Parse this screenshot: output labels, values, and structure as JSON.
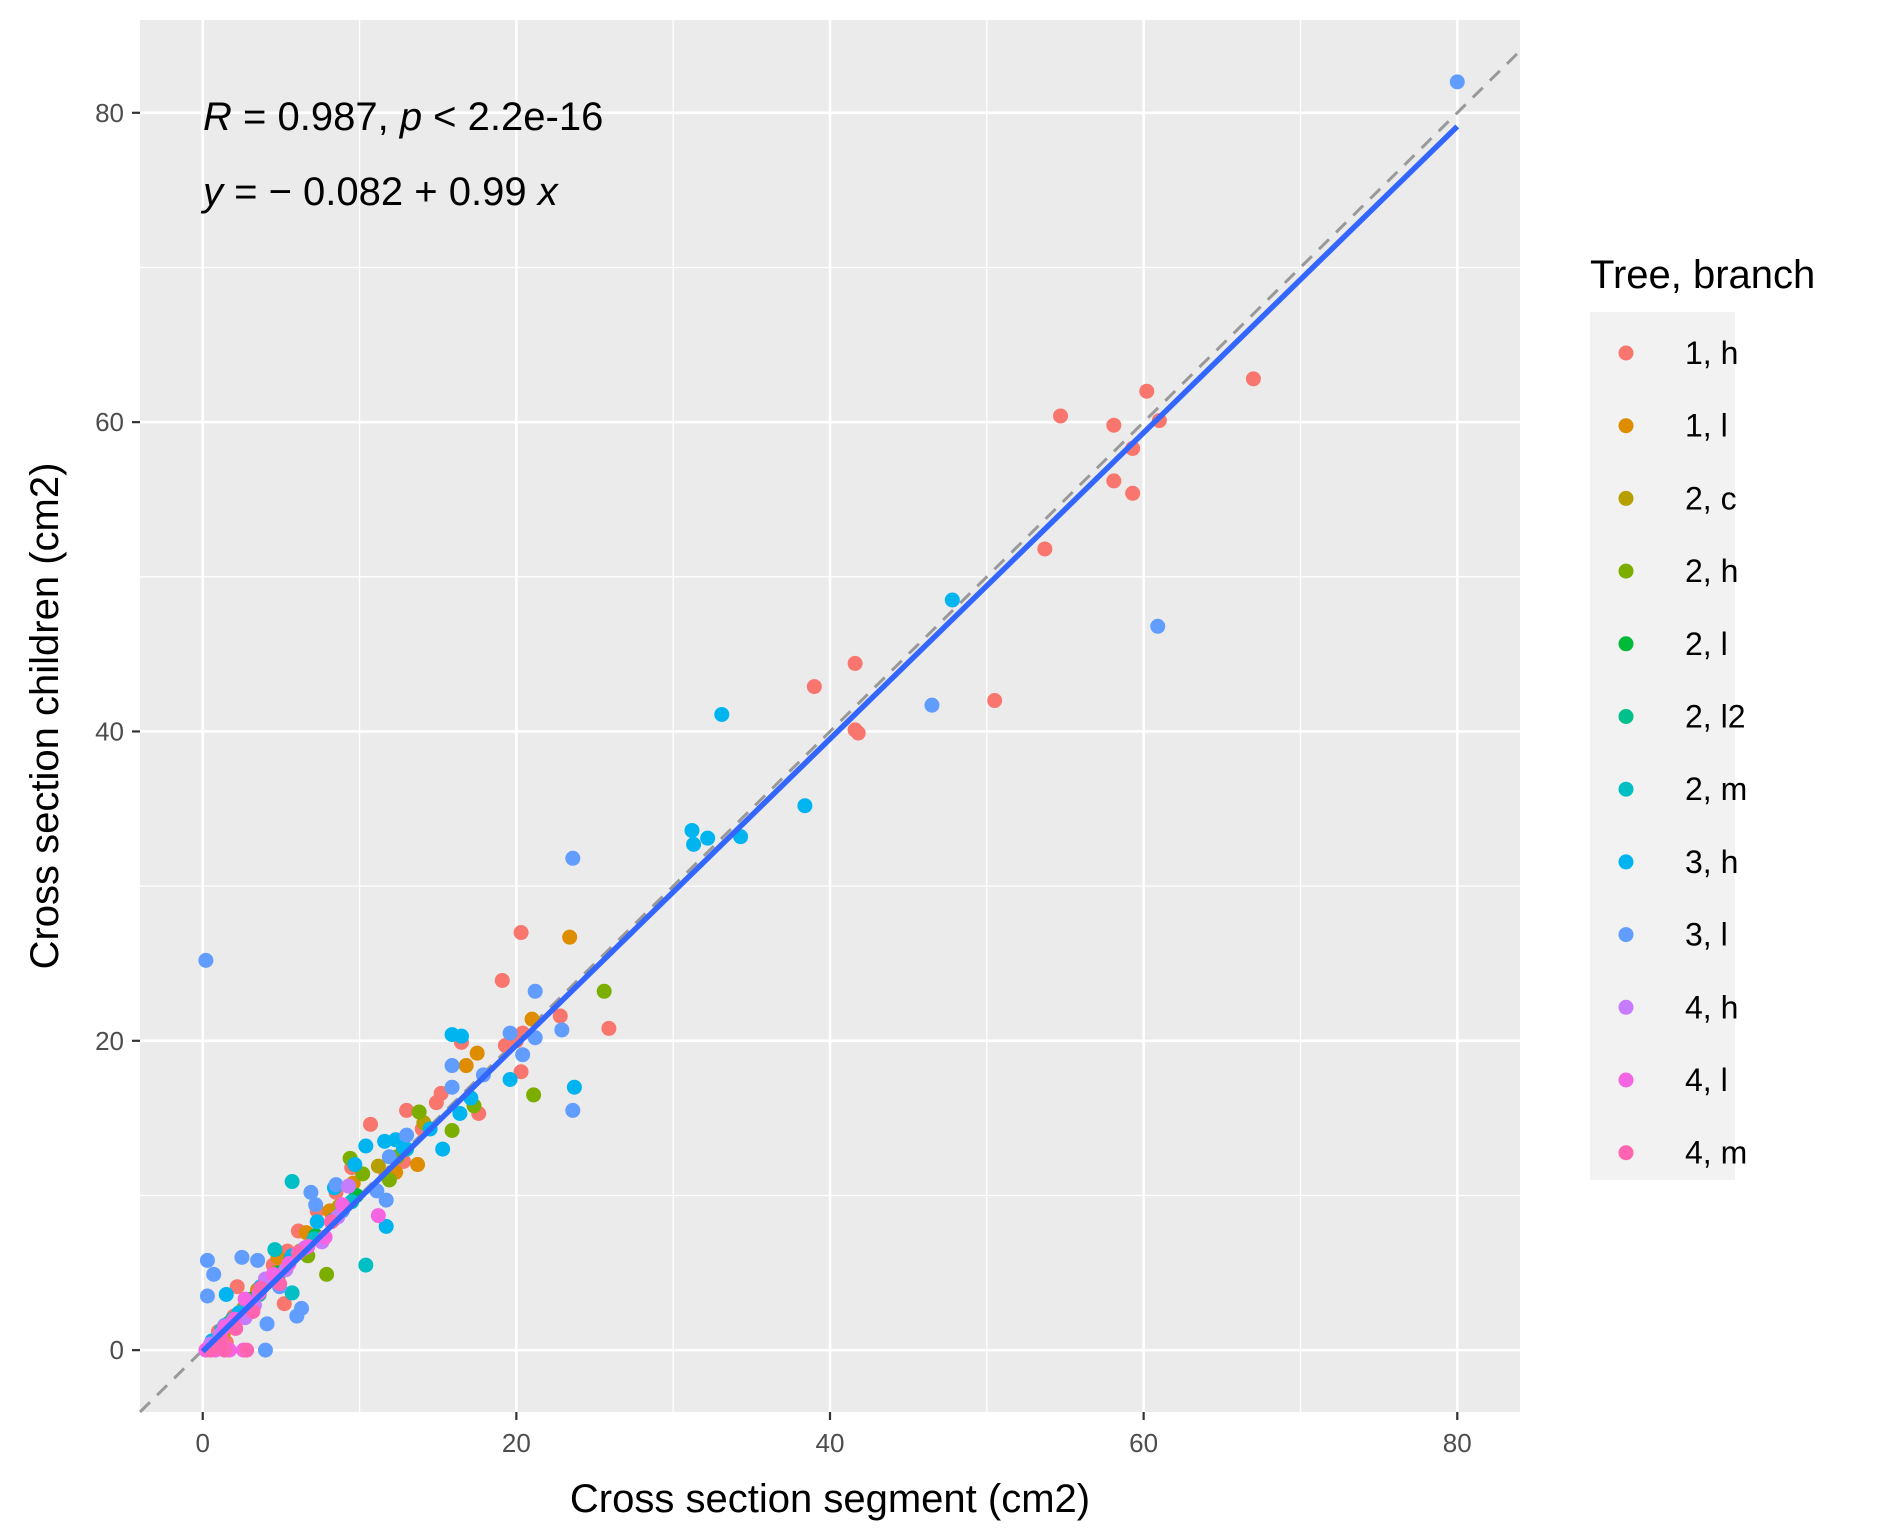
{
  "chart_data": {
    "type": "scatter",
    "xlabel": "Cross section segment (cm2)",
    "ylabel": "Cross section children (cm2)",
    "xlim": [
      -4,
      84
    ],
    "ylim": [
      -4,
      86
    ],
    "xticks": [
      0,
      20,
      40,
      60,
      80
    ],
    "yticks": [
      0,
      20,
      40,
      60,
      80
    ],
    "grid": true,
    "legend_position": "right",
    "legend_title": "Tree, branch",
    "annotations": [
      {
        "line": 1,
        "parts": [
          {
            "text": "R",
            "italic": true
          },
          {
            "text": " = 0.987, ",
            "italic": false
          },
          {
            "text": "p",
            "italic": true
          },
          {
            "text": " < 2.2e-16",
            "italic": false
          }
        ]
      },
      {
        "line": 2,
        "parts": [
          {
            "text": "y",
            "italic": true
          },
          {
            "text": " = − 0.082 + 0.99 ",
            "italic": false
          },
          {
            "text": "x",
            "italic": true
          }
        ]
      }
    ],
    "reference_line": {
      "style": "dashed",
      "color": "#999999",
      "intercept": 0,
      "slope": 1
    },
    "fit_line": {
      "color": "#3366FF",
      "intercept": -0.082,
      "slope": 0.99,
      "x_range": [
        0,
        80
      ]
    },
    "series": [
      {
        "name": "1, h",
        "color": "#F8766D",
        "points": [
          [
            67.0,
            62.8
          ],
          [
            60.2,
            62.0
          ],
          [
            54.7,
            60.4
          ],
          [
            58.1,
            59.8
          ],
          [
            61.0,
            60.1
          ],
          [
            59.3,
            58.3
          ],
          [
            58.1,
            56.2
          ],
          [
            59.3,
            55.4
          ],
          [
            53.7,
            51.8
          ],
          [
            41.6,
            44.4
          ],
          [
            39.0,
            42.9
          ],
          [
            50.5,
            42.0
          ],
          [
            41.6,
            40.1
          ],
          [
            41.8,
            39.9
          ],
          [
            20.3,
            27.0
          ],
          [
            22.8,
            21.6
          ],
          [
            19.1,
            23.9
          ],
          [
            25.9,
            20.8
          ],
          [
            20.4,
            20.5
          ],
          [
            20.0,
            20.0
          ],
          [
            19.3,
            19.7
          ],
          [
            20.3,
            18.0
          ],
          [
            16.5,
            19.9
          ],
          [
            17.6,
            15.3
          ],
          [
            14.9,
            16.0
          ],
          [
            15.2,
            16.6
          ],
          [
            13.0,
            15.5
          ],
          [
            10.7,
            14.6
          ],
          [
            14.0,
            14.3
          ],
          [
            12.8,
            12.2
          ],
          [
            11.7,
            11.3
          ],
          [
            9.5,
            11.8
          ],
          [
            8.5,
            10.2
          ],
          [
            7.3,
            9.0
          ],
          [
            6.1,
            7.7
          ],
          [
            5.4,
            6.4
          ],
          [
            4.5,
            5.5
          ],
          [
            5.2,
            3.0
          ],
          [
            3.0,
            3.0
          ],
          [
            2.2,
            4.1
          ],
          [
            2.0,
            2.2
          ],
          [
            1.0,
            1.2
          ],
          [
            0.6,
            0.2
          ],
          [
            1.5,
            0.5
          ]
        ]
      },
      {
        "name": "1, l",
        "color": "#DE8C00",
        "points": [
          [
            23.4,
            26.7
          ],
          [
            21.0,
            21.4
          ],
          [
            16.8,
            18.4
          ],
          [
            17.5,
            19.2
          ],
          [
            13.7,
            12.0
          ],
          [
            12.3,
            11.5
          ],
          [
            9.6,
            10.8
          ],
          [
            8.1,
            9.0
          ],
          [
            6.6,
            7.6
          ],
          [
            4.8,
            6.0
          ],
          [
            3.5,
            3.9
          ],
          [
            2.4,
            2.3
          ],
          [
            1.3,
            1.0
          ]
        ]
      },
      {
        "name": "2, c",
        "color": "#B79F00",
        "points": [
          [
            14.1,
            14.7
          ],
          [
            11.2,
            11.9
          ],
          [
            8.7,
            9.3
          ],
          [
            6.2,
            6.4
          ],
          [
            4.2,
            4.5
          ],
          [
            2.6,
            2.7
          ],
          [
            1.3,
            1.4
          ]
        ]
      },
      {
        "name": "2, h",
        "color": "#7CAE00",
        "points": [
          [
            25.6,
            23.2
          ],
          [
            21.1,
            16.5
          ],
          [
            17.3,
            15.8
          ],
          [
            13.8,
            15.4
          ],
          [
            15.9,
            14.2
          ],
          [
            12.4,
            12.5
          ],
          [
            11.9,
            11.0
          ],
          [
            10.2,
            11.4
          ],
          [
            9.4,
            12.4
          ],
          [
            7.9,
            4.9
          ],
          [
            6.7,
            6.1
          ],
          [
            4.7,
            5.0
          ],
          [
            2.9,
            3.2
          ]
        ]
      },
      {
        "name": "2, l",
        "color": "#00BA38",
        "points": [
          [
            9.8,
            10.0
          ],
          [
            7.2,
            7.4
          ],
          [
            4.9,
            5.0
          ],
          [
            3.1,
            3.3
          ],
          [
            1.6,
            1.7
          ]
        ]
      },
      {
        "name": "2, l2",
        "color": "#00C08B",
        "points": [
          [
            8.3,
            8.4
          ],
          [
            5.6,
            5.9
          ],
          [
            3.6,
            3.6
          ],
          [
            1.9,
            2.0
          ]
        ]
      },
      {
        "name": "2, m",
        "color": "#00BFC4",
        "points": [
          [
            10.4,
            5.5
          ],
          [
            5.7,
            10.9
          ],
          [
            5.7,
            3.7
          ],
          [
            13.0,
            13.0
          ],
          [
            9.5,
            9.6
          ],
          [
            7.1,
            7.2
          ],
          [
            4.6,
            6.5
          ],
          [
            2.8,
            2.9
          ],
          [
            1.2,
            1.3
          ]
        ]
      },
      {
        "name": "3, h",
        "color": "#00B4F0",
        "points": [
          [
            33.1,
            41.1
          ],
          [
            47.8,
            48.5
          ],
          [
            38.4,
            35.2
          ],
          [
            31.2,
            33.6
          ],
          [
            31.3,
            32.7
          ],
          [
            32.2,
            33.1
          ],
          [
            34.3,
            33.2
          ],
          [
            23.7,
            17.0
          ],
          [
            15.9,
            20.4
          ],
          [
            16.5,
            20.3
          ],
          [
            17.1,
            16.3
          ],
          [
            16.4,
            15.3
          ],
          [
            19.6,
            17.5
          ],
          [
            15.3,
            13.0
          ],
          [
            14.5,
            14.3
          ],
          [
            12.8,
            13.1
          ],
          [
            11.6,
            13.5
          ],
          [
            12.3,
            13.6
          ],
          [
            11.7,
            8.0
          ],
          [
            10.4,
            13.2
          ],
          [
            9.7,
            12.0
          ],
          [
            8.4,
            10.5
          ],
          [
            7.3,
            8.3
          ],
          [
            5.7,
            6.1
          ],
          [
            3.7,
            4.1
          ],
          [
            2.3,
            2.4
          ],
          [
            1.5,
            3.6
          ],
          [
            0.6,
            0.6
          ]
        ]
      },
      {
        "name": "3, l",
        "color": "#619CFF",
        "points": [
          [
            80.0,
            82.0
          ],
          [
            60.9,
            46.8
          ],
          [
            46.5,
            41.7
          ],
          [
            23.6,
            31.8
          ],
          [
            21.2,
            23.2
          ],
          [
            22.9,
            20.7
          ],
          [
            21.2,
            20.2
          ],
          [
            19.6,
            20.5
          ],
          [
            20.4,
            19.1
          ],
          [
            23.6,
            15.5
          ],
          [
            17.9,
            17.8
          ],
          [
            15.9,
            18.4
          ],
          [
            15.9,
            17.0
          ],
          [
            13.0,
            13.9
          ],
          [
            11.9,
            12.5
          ],
          [
            11.1,
            10.3
          ],
          [
            11.7,
            9.7
          ],
          [
            8.5,
            10.7
          ],
          [
            8.9,
            9.0
          ],
          [
            7.2,
            9.4
          ],
          [
            6.9,
            10.2
          ],
          [
            6.0,
            2.2
          ],
          [
            6.3,
            2.7
          ],
          [
            4.0,
            0.0
          ],
          [
            4.1,
            1.7
          ],
          [
            3.5,
            5.8
          ],
          [
            2.5,
            6.0
          ],
          [
            0.7,
            4.9
          ],
          [
            0.3,
            5.8
          ],
          [
            0.2,
            25.2
          ],
          [
            0.3,
            3.5
          ],
          [
            1.4,
            1.6
          ],
          [
            2.1,
            2.0
          ],
          [
            3.2,
            3.0
          ],
          [
            4.9,
            4.1
          ]
        ]
      },
      {
        "name": "4, h",
        "color": "#C77CFF",
        "points": [
          [
            9.3,
            10.6
          ],
          [
            8.6,
            8.6
          ],
          [
            7.6,
            7.0
          ],
          [
            6.5,
            6.6
          ],
          [
            5.3,
            5.2
          ],
          [
            4.0,
            4.6
          ],
          [
            3.3,
            2.9
          ],
          [
            2.7,
            2.1
          ],
          [
            1.8,
            1.7
          ],
          [
            1.1,
            1.0
          ],
          [
            0.5,
            0.4
          ]
        ]
      },
      {
        "name": "4, l",
        "color": "#F564E3",
        "points": [
          [
            11.2,
            8.7
          ],
          [
            8.9,
            9.4
          ],
          [
            7.8,
            7.3
          ],
          [
            6.7,
            6.7
          ],
          [
            5.5,
            5.6
          ],
          [
            4.5,
            4.9
          ],
          [
            3.6,
            3.7
          ],
          [
            2.7,
            3.3
          ],
          [
            2.0,
            2.0
          ],
          [
            1.4,
            1.5
          ],
          [
            0.8,
            0.0
          ],
          [
            1.7,
            0.0
          ],
          [
            2.6,
            0.0
          ],
          [
            0.2,
            0.0
          ]
        ]
      },
      {
        "name": "4, m",
        "color": "#FF64B0",
        "points": [
          [
            8.2,
            8.3
          ],
          [
            6.1,
            6.3
          ],
          [
            4.9,
            4.3
          ],
          [
            3.7,
            4.0
          ],
          [
            3.2,
            2.5
          ],
          [
            2.1,
            1.4
          ],
          [
            1.2,
            0.7
          ],
          [
            0.5,
            0.0
          ],
          [
            1.4,
            0.0
          ],
          [
            2.8,
            0.0
          ]
        ]
      }
    ]
  }
}
